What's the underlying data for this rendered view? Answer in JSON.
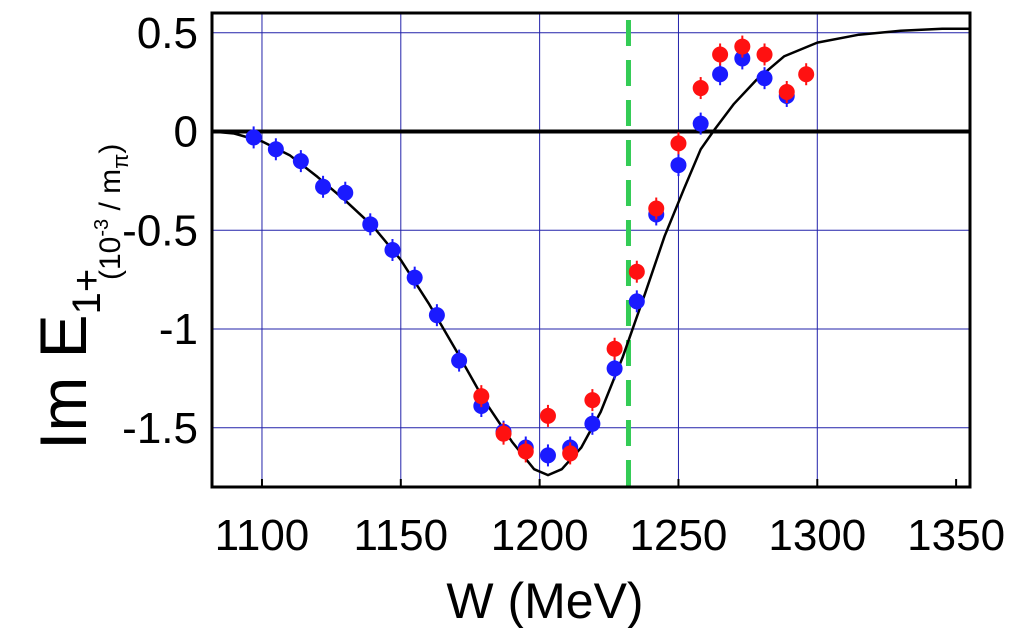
{
  "chart_data": {
    "type": "scatter",
    "xlabel": "W (MeV)",
    "ylabel_main": "Im E",
    "ylabel_sub": "1+",
    "ylabel_unit_open": "(10",
    "ylabel_unit_exp": "-3",
    "ylabel_unit_mid": " / m",
    "ylabel_unit_sub": "π",
    "ylabel_unit_close": ")",
    "xlim": [
      1082,
      1355
    ],
    "ylim": [
      -1.8,
      0.6
    ],
    "xticks": [
      1100,
      1150,
      1200,
      1250,
      1300,
      1350
    ],
    "xtick_labels": [
      "1100",
      "1150",
      "1200",
      "1250",
      "1300",
      "1350"
    ],
    "yticks": [
      0.5,
      0,
      -0.5,
      -1,
      -1.5
    ],
    "ytick_labels": [
      "0.5",
      "0",
      "-0.5",
      "-1",
      "-1.5"
    ],
    "xgrid": [
      1100,
      1150,
      1200,
      1250,
      1300
    ],
    "ygrid": [
      0.5,
      -0.5,
      -1,
      -1.5
    ],
    "grid": true,
    "zero_line": 0,
    "vertical_line": {
      "x": 1232,
      "color": "#33cc55",
      "style": "dashed"
    },
    "colors": {
      "blue": "#1a1aff",
      "red": "#ff1111",
      "curve": "#000000",
      "grid": "#2222aa"
    },
    "series": [
      {
        "marker": "circle",
        "color": "#1a1aff",
        "points": [
          [
            1097,
            -0.03
          ],
          [
            1105,
            -0.09
          ],
          [
            1114,
            -0.15
          ],
          [
            1122,
            -0.28
          ],
          [
            1130,
            -0.31
          ],
          [
            1139,
            -0.47
          ],
          [
            1147,
            -0.6
          ],
          [
            1155,
            -0.74
          ],
          [
            1163,
            -0.93
          ],
          [
            1171,
            -1.16
          ],
          [
            1179,
            -1.39
          ],
          [
            1187,
            -1.52
          ],
          [
            1195,
            -1.6
          ],
          [
            1203,
            -1.64
          ],
          [
            1211,
            -1.6
          ],
          [
            1219,
            -1.48
          ],
          [
            1227,
            -1.2
          ],
          [
            1235,
            -0.86
          ],
          [
            1242,
            -0.42
          ],
          [
            1250,
            -0.17
          ],
          [
            1258,
            0.04
          ],
          [
            1265,
            0.29
          ],
          [
            1273,
            0.37
          ],
          [
            1281,
            0.27
          ],
          [
            1289,
            0.18
          ]
        ]
      },
      {
        "marker": "circle",
        "color": "#ff1111",
        "points": [
          [
            1179,
            -1.34
          ],
          [
            1187,
            -1.53
          ],
          [
            1195,
            -1.62
          ],
          [
            1203,
            -1.44
          ],
          [
            1211,
            -1.63
          ],
          [
            1219,
            -1.36
          ],
          [
            1227,
            -1.1
          ],
          [
            1235,
            -0.71
          ],
          [
            1242,
            -0.39
          ],
          [
            1250,
            -0.06
          ],
          [
            1258,
            0.22
          ],
          [
            1265,
            0.39
          ],
          [
            1273,
            0.43
          ],
          [
            1281,
            0.39
          ],
          [
            1289,
            0.2
          ],
          [
            1296,
            0.29
          ]
        ]
      }
    ],
    "curve": [
      [
        1082,
        0
      ],
      [
        1090,
        -0.01
      ],
      [
        1100,
        -0.05
      ],
      [
        1110,
        -0.12
      ],
      [
        1120,
        -0.23
      ],
      [
        1130,
        -0.35
      ],
      [
        1140,
        -0.48
      ],
      [
        1150,
        -0.65
      ],
      [
        1160,
        -0.87
      ],
      [
        1170,
        -1.11
      ],
      [
        1180,
        -1.36
      ],
      [
        1190,
        -1.57
      ],
      [
        1198,
        -1.71
      ],
      [
        1203,
        -1.74
      ],
      [
        1208,
        -1.71
      ],
      [
        1215,
        -1.6
      ],
      [
        1222,
        -1.42
      ],
      [
        1230,
        -1.14
      ],
      [
        1238,
        -0.82
      ],
      [
        1245,
        -0.53
      ],
      [
        1252,
        -0.29
      ],
      [
        1258,
        -0.09
      ],
      [
        1263,
        0.01
      ],
      [
        1270,
        0.14
      ],
      [
        1278,
        0.26
      ],
      [
        1288,
        0.38
      ],
      [
        1300,
        0.45
      ],
      [
        1315,
        0.49
      ],
      [
        1330,
        0.51
      ],
      [
        1345,
        0.52
      ],
      [
        1355,
        0.52
      ]
    ]
  }
}
